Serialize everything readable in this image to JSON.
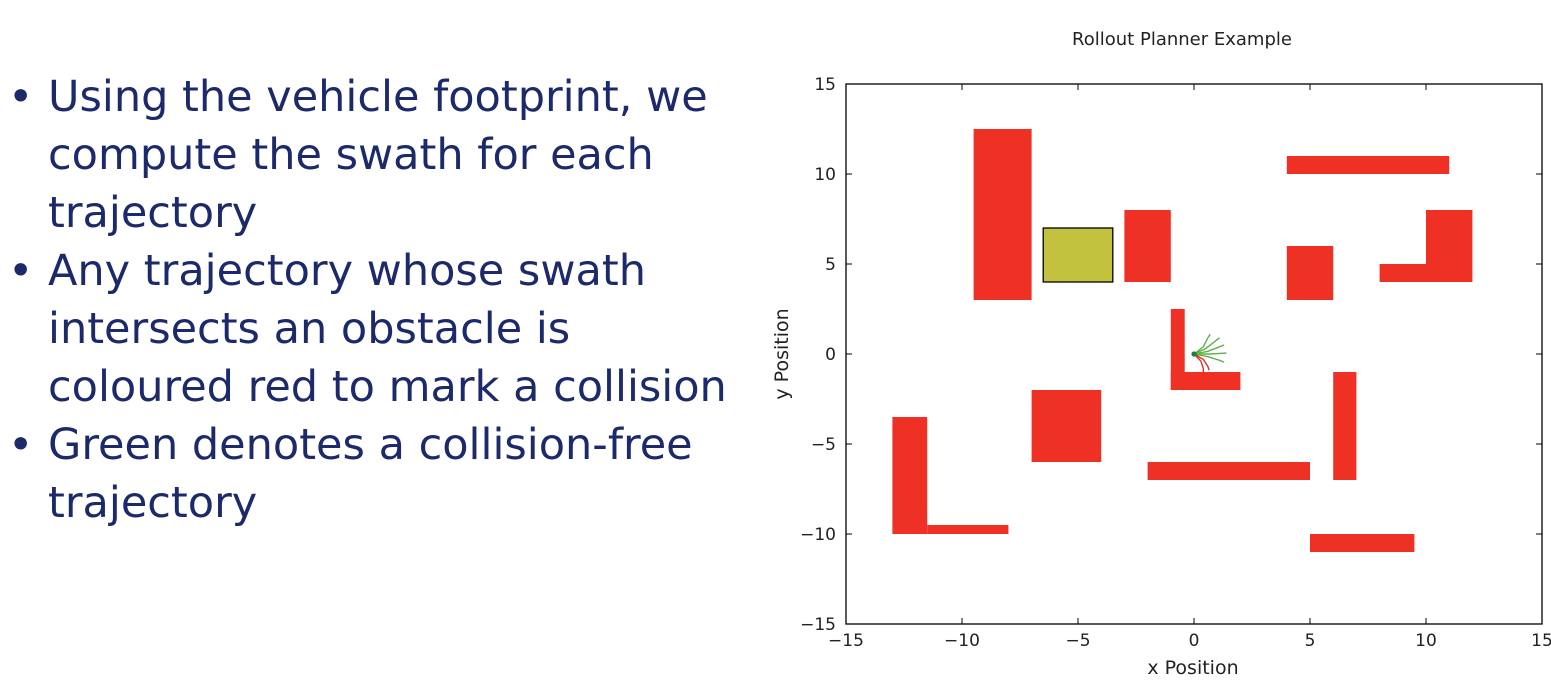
{
  "slide": {
    "bullets": [
      "Using the vehicle footprint, we compute the swath for each trajectory",
      "Any trajectory whose swath intersects an obstacle is coloured red to mark a collision",
      "Green denotes a collision-free trajectory"
    ]
  },
  "chart_data": {
    "type": "scatter",
    "title": "Rollout Planner Example",
    "xlabel": "x Position",
    "ylabel": "y Position",
    "xlim": [
      -15,
      15
    ],
    "ylim": [
      -15,
      15
    ],
    "xticks": [
      "−15",
      "−10",
      "−5",
      "0",
      "5",
      "10",
      "15"
    ],
    "yticks": [
      "15",
      "10",
      "5",
      "0",
      "−5",
      "−10",
      "−15"
    ],
    "xtick_values": [
      -15,
      -10,
      -5,
      0,
      5,
      10,
      15
    ],
    "ytick_values": [
      15,
      10,
      5,
      0,
      -5,
      -10,
      -15
    ],
    "grid": false,
    "colors": {
      "obstacle": "#ee3124",
      "goal": "#c2c23f",
      "free": "#5fb14a",
      "collision": "#d9312b",
      "vehicle": "#1e7f3a"
    },
    "obstacles": [
      {
        "x0": -9.5,
        "x1": -7,
        "y0": 3,
        "y1": 12.5
      },
      {
        "x0": -3,
        "x1": -1,
        "y0": 4,
        "y1": 8
      },
      {
        "x0": 4,
        "x1": 11,
        "y0": 10,
        "y1": 11
      },
      {
        "x0": 10,
        "x1": 12,
        "y0": 4,
        "y1": 8
      },
      {
        "x0": 8,
        "x1": 10,
        "y0": 4,
        "y1": 5
      },
      {
        "x0": 4,
        "x1": 6,
        "y0": 3,
        "y1": 6
      },
      {
        "x0": -1,
        "x1": -0.4,
        "y0": -2,
        "y1": 2.5
      },
      {
        "x0": -1,
        "x1": 2,
        "y0": -2,
        "y1": -1
      },
      {
        "x0": 6,
        "x1": 7,
        "y0": -7,
        "y1": -1
      },
      {
        "x0": -7,
        "x1": -4,
        "y0": -6,
        "y1": -2
      },
      {
        "x0": -2,
        "x1": 5,
        "y0": -7,
        "y1": -6
      },
      {
        "x0": -13,
        "x1": -11.5,
        "y0": -10,
        "y1": -3.5
      },
      {
        "x0": -11.5,
        "x1": -8,
        "y0": -10,
        "y1": -9.5
      },
      {
        "x0": 5,
        "x1": 9.5,
        "y0": -11,
        "y1": -10
      }
    ],
    "goal": {
      "x0": -6.5,
      "x1": -3.5,
      "y0": 4,
      "y1": 7
    },
    "vehicle": {
      "x": 0,
      "y": 0
    },
    "trajectories": [
      {
        "status": "free",
        "points": [
          [
            0,
            0
          ],
          [
            0.4,
            0.4
          ],
          [
            0.6,
            0.9
          ],
          [
            0.7,
            1.1
          ]
        ]
      },
      {
        "status": "free",
        "points": [
          [
            0,
            0
          ],
          [
            0.5,
            0.3
          ],
          [
            0.9,
            0.7
          ],
          [
            1.1,
            0.9
          ]
        ]
      },
      {
        "status": "free",
        "points": [
          [
            0,
            0
          ],
          [
            0.6,
            0.15
          ],
          [
            1.1,
            0.4
          ],
          [
            1.3,
            0.5
          ]
        ]
      },
      {
        "status": "free",
        "points": [
          [
            0,
            0
          ],
          [
            0.7,
            0
          ],
          [
            1.4,
            0.05
          ]
        ]
      },
      {
        "status": "free",
        "points": [
          [
            0,
            0
          ],
          [
            0.6,
            -0.15
          ],
          [
            1.1,
            -0.35
          ],
          [
            1.3,
            -0.45
          ]
        ]
      },
      {
        "status": "collision",
        "points": [
          [
            0,
            0
          ],
          [
            0.4,
            -0.3
          ],
          [
            0.6,
            -0.7
          ],
          [
            0.65,
            -0.9
          ]
        ]
      },
      {
        "status": "collision",
        "points": [
          [
            0,
            0
          ],
          [
            0.3,
            -0.4
          ],
          [
            0.4,
            -0.8
          ],
          [
            0.4,
            -1.0
          ]
        ]
      }
    ]
  }
}
